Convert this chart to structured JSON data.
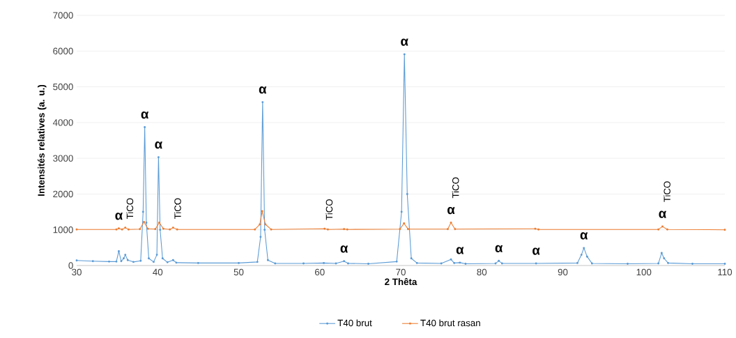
{
  "chart_data": {
    "type": "line",
    "xlabel": "2 Thêta",
    "ylabel": "Intensités relatives (a. u.)",
    "xlim": [
      30,
      110
    ],
    "xticks": [
      30,
      40,
      50,
      60,
      70,
      80,
      90,
      100,
      110
    ],
    "ylim": [
      0,
      7000
    ],
    "yticks": [
      0,
      1000,
      2000,
      3000,
      4000,
      5000,
      6000,
      7000
    ],
    "grid": "y",
    "legend": "bottom",
    "marker": "circle",
    "line_style": "solid",
    "series": [
      {
        "name": "T40 brut",
        "color": "#5b9bd5",
        "x": [
          30,
          32,
          34,
          34.9,
          35.2,
          35.5,
          35.8,
          36.0,
          36.3,
          37,
          37.9,
          38.2,
          38.4,
          38.6,
          38.9,
          39.5,
          39.9,
          40.1,
          40.3,
          40.6,
          41.2,
          41.9,
          42.3,
          45,
          50,
          52.3,
          52.7,
          52.95,
          53.2,
          53.6,
          54.5,
          58,
          60.5,
          62,
          63,
          63.5,
          66,
          69.5,
          70.1,
          70.45,
          70.8,
          71.3,
          72,
          75,
          76.2,
          76.6,
          77.3,
          78,
          81.7,
          82.1,
          82.5,
          86.7,
          91.8,
          92.3,
          92.6,
          93.0,
          93.6,
          98,
          101.8,
          102.2,
          102.5,
          103,
          106,
          110
        ],
        "values": [
          140,
          120,
          110,
          110,
          400,
          120,
          200,
          300,
          150,
          100,
          130,
          1500,
          3870,
          1200,
          200,
          100,
          300,
          3030,
          1000,
          200,
          90,
          150,
          80,
          70,
          70,
          100,
          800,
          4570,
          1000,
          150,
          60,
          60,
          70,
          60,
          120,
          60,
          50,
          110,
          1500,
          5910,
          2000,
          200,
          70,
          60,
          170,
          70,
          80,
          50,
          60,
          130,
          60,
          60,
          70,
          300,
          490,
          250,
          60,
          50,
          60,
          350,
          200,
          70,
          50,
          50
        ]
      },
      {
        "name": "T40 brut rasan",
        "color": "#ed7d31",
        "x": [
          30,
          34.9,
          35.2,
          35.6,
          36.0,
          36.4,
          37.8,
          38.3,
          38.8,
          39.7,
          40.2,
          40.7,
          41.5,
          41.9,
          42.4,
          52,
          52.6,
          52.9,
          53.3,
          54,
          60.6,
          61,
          63,
          63.4,
          69.9,
          70.4,
          70.9,
          75.8,
          76.2,
          76.7,
          86.6,
          87,
          101.8,
          102.3,
          102.9,
          110
        ],
        "values": [
          1010,
          1010,
          1040,
          1010,
          1060,
          1010,
          1020,
          1220,
          1030,
          1020,
          1200,
          1030,
          1010,
          1060,
          1010,
          1010,
          1150,
          1520,
          1150,
          1010,
          1030,
          1010,
          1020,
          1010,
          1020,
          1180,
          1020,
          1020,
          1200,
          1020,
          1030,
          1010,
          1010,
          1090,
          1010,
          1000
        ]
      }
    ],
    "annotations": [
      {
        "text": "α",
        "x": 35.2,
        "y": 1040
      },
      {
        "text": "TiCO",
        "x": 36.0,
        "y": 1060
      },
      {
        "text": "α",
        "x": 38.4,
        "y": 3870
      },
      {
        "text": "α",
        "x": 40.1,
        "y": 3030
      },
      {
        "text": "TiCO",
        "x": 41.9,
        "y": 1060
      },
      {
        "text": "α",
        "x": 52.95,
        "y": 4570
      },
      {
        "text": "TiCO",
        "x": 60.6,
        "y": 1030
      },
      {
        "text": "α",
        "x": 63,
        "y": 120
      },
      {
        "text": "α",
        "x": 70.45,
        "y": 5910
      },
      {
        "text": "α",
        "x": 76.2,
        "y": 1200
      },
      {
        "text": "TiCO",
        "x": 76.2,
        "y": 1200
      },
      {
        "text": "α",
        "x": 77.3,
        "y": 80
      },
      {
        "text": "α",
        "x": 82.1,
        "y": 130
      },
      {
        "text": "α",
        "x": 86.7,
        "y": 60
      },
      {
        "text": "α",
        "x": 92.6,
        "y": 490
      },
      {
        "text": "α",
        "x": 102.3,
        "y": 1090
      },
      {
        "text": "TiCO",
        "x": 102.3,
        "y": 1090
      }
    ]
  }
}
